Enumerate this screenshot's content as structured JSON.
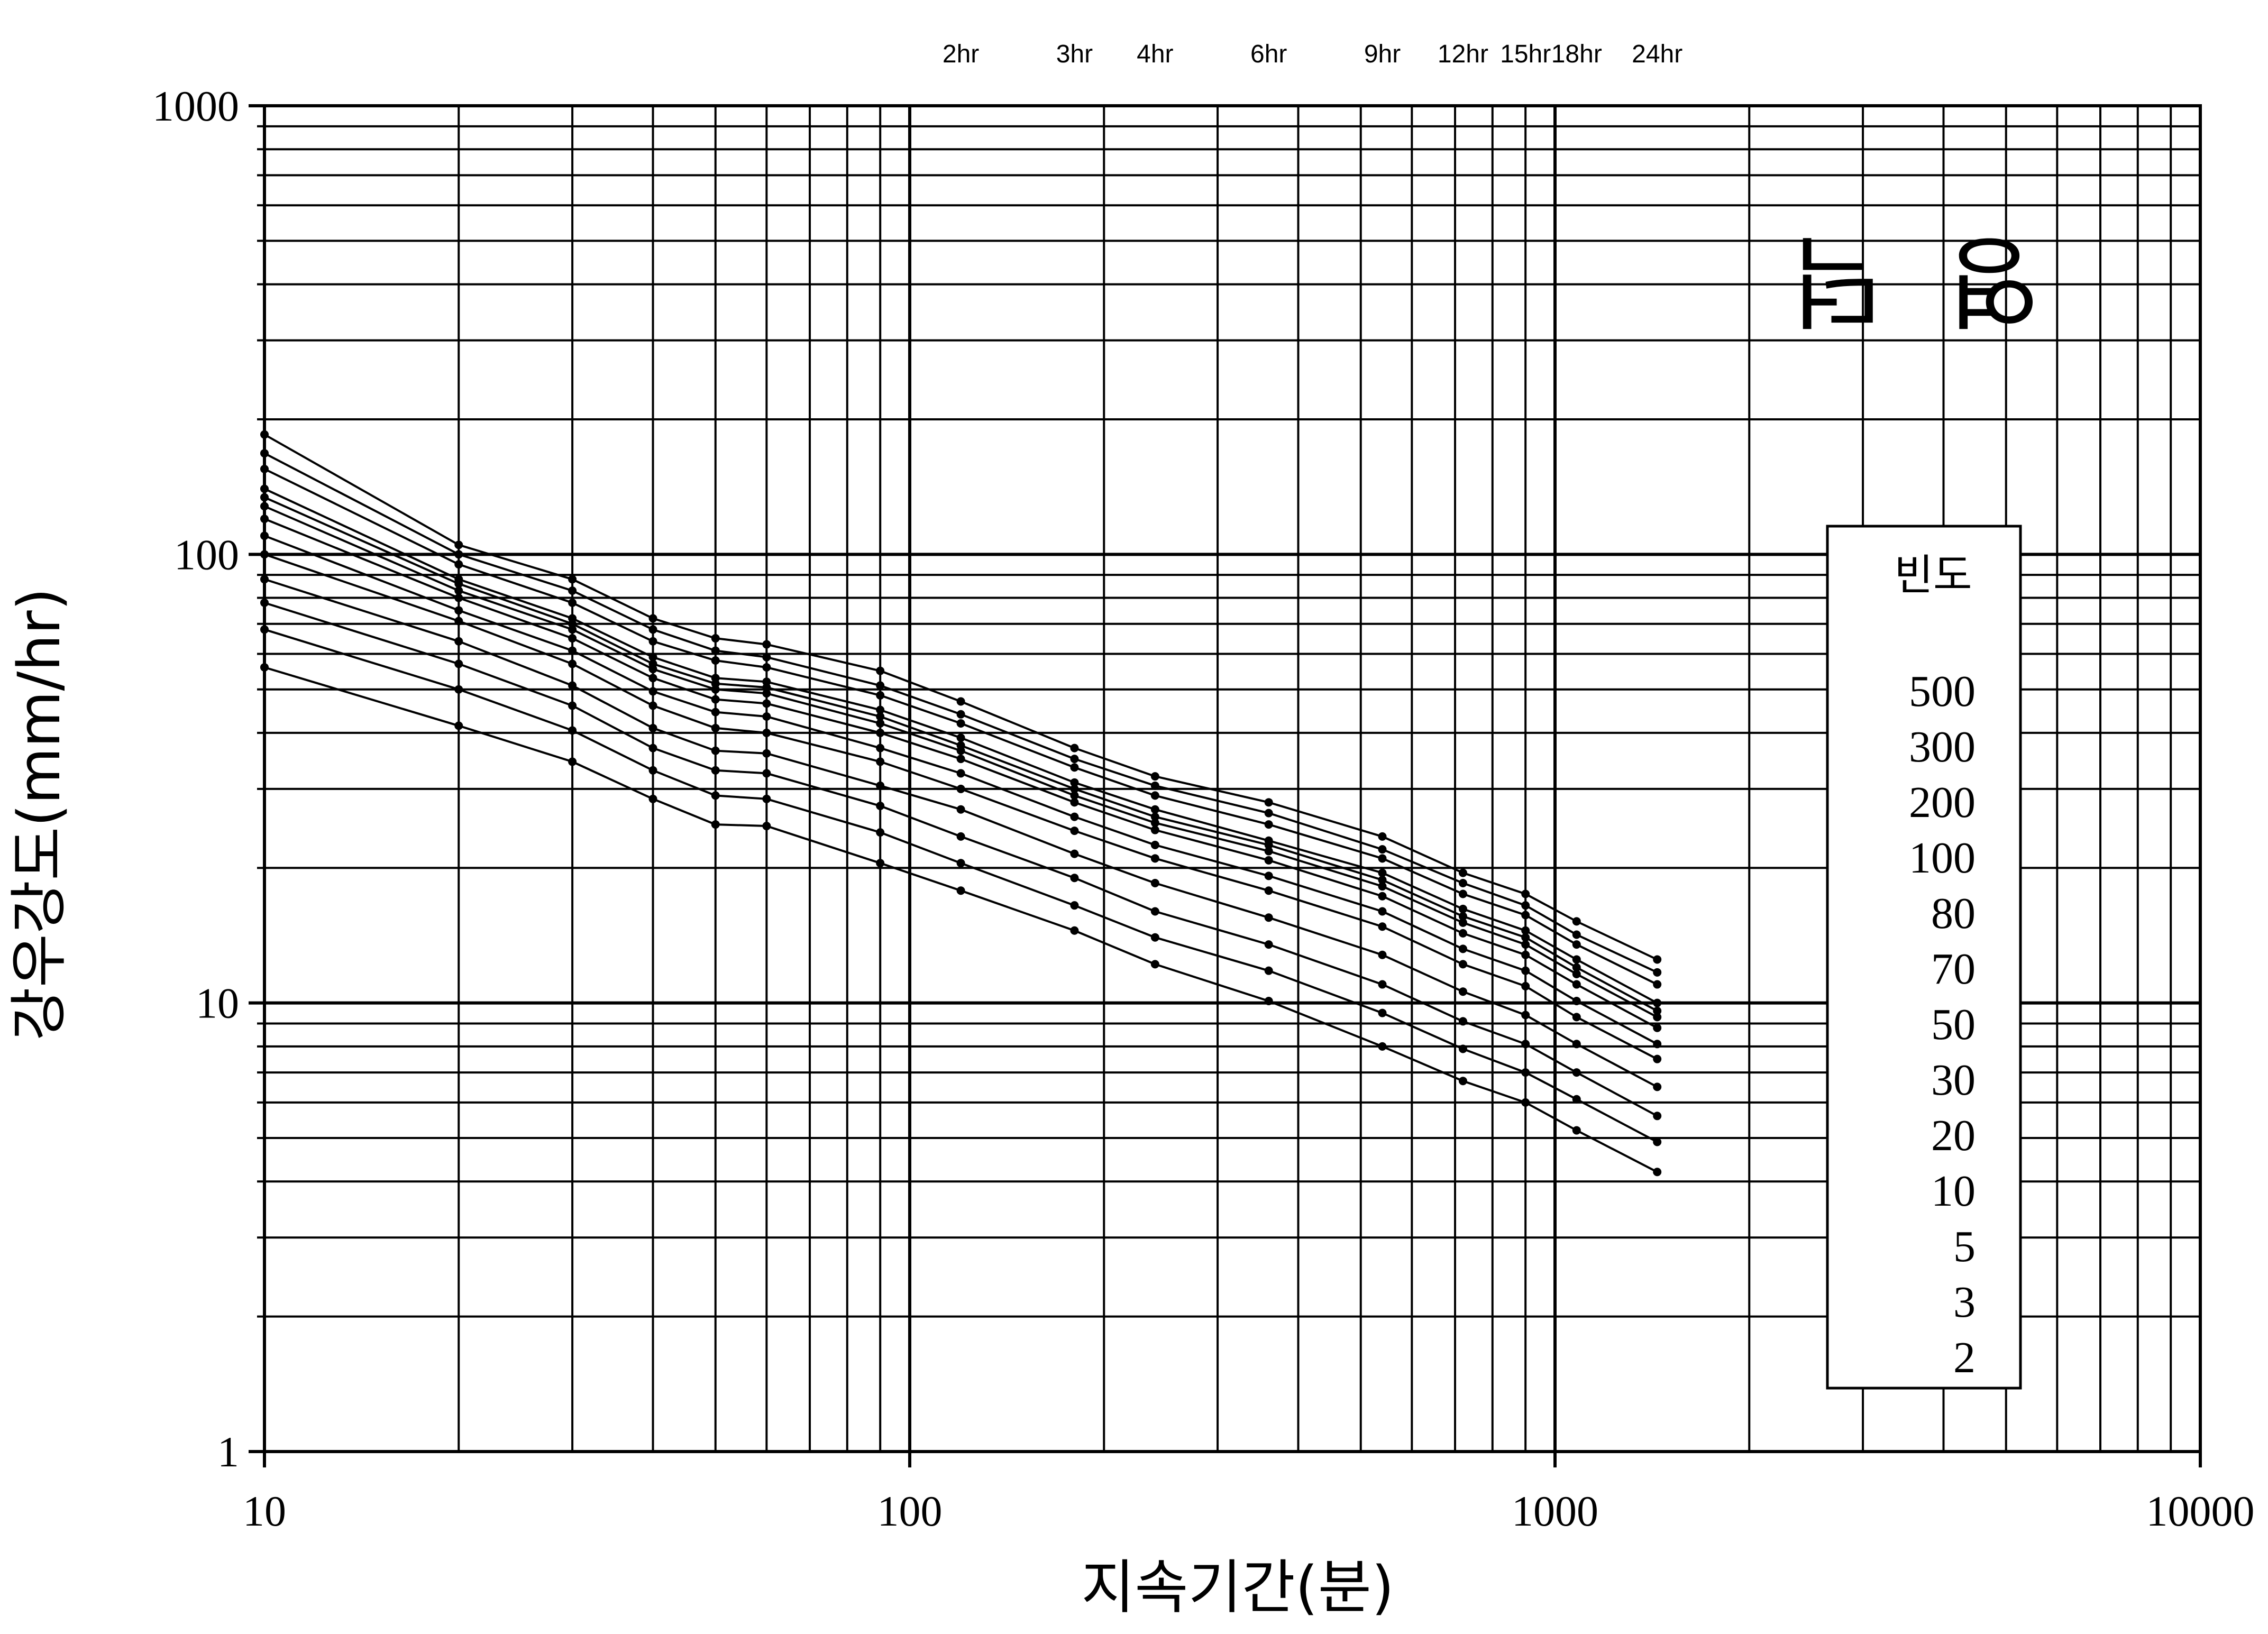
{
  "chart_data": {
    "type": "line",
    "title": "영  덕",
    "xlabel": "지속기간(분)",
    "ylabel": "강우강도(mm/hr)",
    "x_scale": "log",
    "y_scale": "log",
    "xlim": [
      10,
      10000
    ],
    "ylim": [
      1,
      1000
    ],
    "grid": true,
    "x_tick_labels": [
      "10",
      "100",
      "1000",
      "10000"
    ],
    "y_tick_labels": [
      "1",
      "10",
      "100",
      "1000"
    ],
    "top_axis_labels": [
      {
        "label": "2hr",
        "minutes": 120
      },
      {
        "label": "3hr",
        "minutes": 180
      },
      {
        "label": "4hr",
        "minutes": 240
      },
      {
        "label": "6hr",
        "minutes": 360
      },
      {
        "label": "9hr",
        "minutes": 540
      },
      {
        "label": "12hr",
        "minutes": 720
      },
      {
        "label": "15hr",
        "minutes": 900
      },
      {
        "label": "18hr",
        "minutes": 1080
      },
      {
        "label": "24hr",
        "minutes": 1440
      }
    ],
    "legend": {
      "title": "빈도",
      "position": "right",
      "entries": [
        "500",
        "300",
        "200",
        "100",
        "80",
        "70",
        "50",
        "30",
        "20",
        "10",
        "5",
        "3",
        "2"
      ]
    },
    "x": [
      10,
      20,
      30,
      40,
      50,
      60,
      90,
      120,
      180,
      240,
      360,
      540,
      720,
      900,
      1080,
      1440
    ],
    "series": [
      {
        "name": "500",
        "values": [
          185,
          105,
          88,
          72,
          65,
          63,
          55,
          47,
          37,
          32,
          28,
          23.5,
          19.5,
          17.5,
          15.2,
          12.5
        ]
      },
      {
        "name": "300",
        "values": [
          168,
          100,
          83,
          68,
          61,
          59,
          51,
          44,
          35,
          30.5,
          26.5,
          22,
          18.5,
          16.5,
          14.2,
          11.7
        ]
      },
      {
        "name": "200",
        "values": [
          155,
          95,
          78,
          64,
          58,
          56,
          48.5,
          42,
          33.5,
          29,
          25,
          21,
          17.5,
          15.7,
          13.5,
          11
        ]
      },
      {
        "name": "100",
        "values": [
          140,
          88,
          72,
          59,
          53,
          52,
          45,
          39,
          31,
          27,
          23,
          19.5,
          16.2,
          14.5,
          12.5,
          10
        ]
      },
      {
        "name": "80",
        "values": [
          134,
          86,
          70,
          57,
          51.5,
          50.5,
          43.5,
          37.5,
          30,
          26,
          22.5,
          18.8,
          15.6,
          14,
          12,
          9.6
        ]
      },
      {
        "name": "70",
        "values": [
          128,
          83,
          68,
          55.5,
          50,
          49,
          42,
          36.5,
          29,
          25.2,
          21.8,
          18.2,
          15.1,
          13.5,
          11.6,
          9.3
        ]
      },
      {
        "name": "50",
        "values": [
          120,
          80,
          65,
          53,
          47.5,
          46.5,
          40,
          35,
          28,
          24.3,
          20.8,
          17.3,
          14.3,
          12.8,
          11,
          8.8
        ]
      },
      {
        "name": "30",
        "values": [
          110,
          75,
          61,
          49.5,
          44.5,
          43.5,
          37,
          32.5,
          26,
          22.5,
          19.2,
          16,
          13.2,
          11.8,
          10.1,
          8.1
        ]
      },
      {
        "name": "20",
        "values": [
          100,
          71,
          57,
          46,
          41,
          40,
          34.5,
          30,
          24.2,
          21,
          17.8,
          14.8,
          12.2,
          10.9,
          9.3,
          7.5
        ]
      },
      {
        "name": "10",
        "values": [
          88,
          64,
          51,
          41,
          36.5,
          36,
          30.5,
          27,
          21.5,
          18.5,
          15.5,
          12.8,
          10.6,
          9.4,
          8.1,
          6.5
        ]
      },
      {
        "name": "5",
        "values": [
          78,
          57,
          46,
          37,
          33,
          32.5,
          27.5,
          23.5,
          19,
          16,
          13.5,
          11,
          9.1,
          8.1,
          7,
          5.6
        ]
      },
      {
        "name": "3",
        "values": [
          68,
          50,
          40.5,
          33,
          29,
          28.5,
          24,
          20.5,
          16.5,
          14,
          11.8,
          9.5,
          7.9,
          7,
          6.1,
          4.9
        ]
      },
      {
        "name": "2",
        "values": [
          56,
          41.5,
          34.5,
          28.5,
          25,
          24.8,
          20.5,
          17.8,
          14.5,
          12.2,
          10.1,
          8,
          6.7,
          6,
          5.2,
          4.2
        ]
      }
    ]
  }
}
